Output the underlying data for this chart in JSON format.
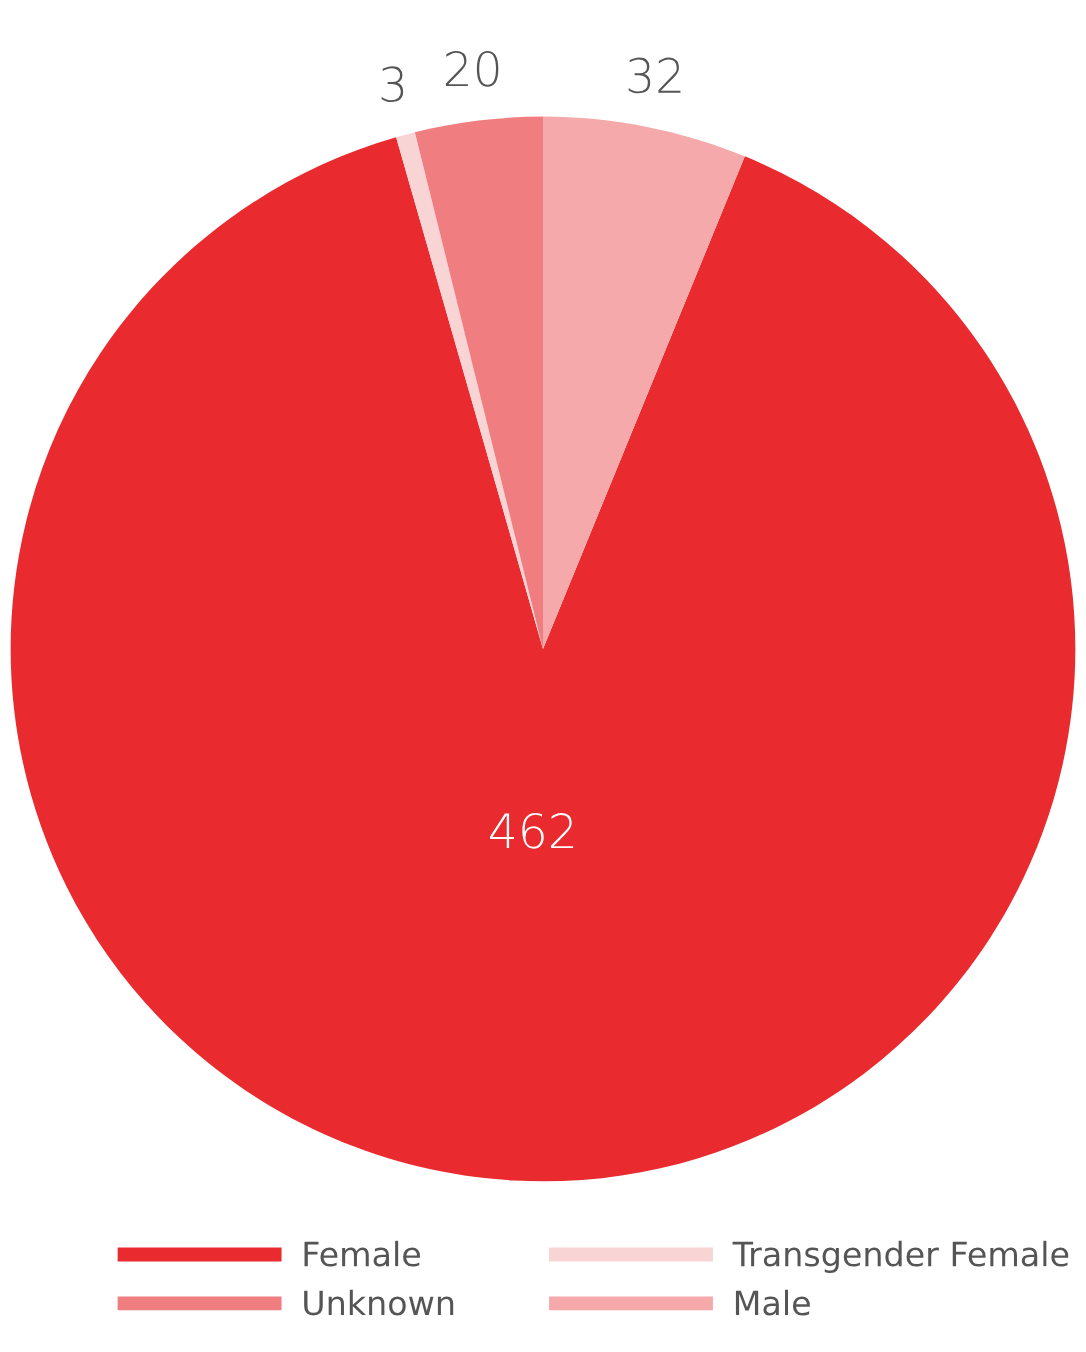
{
  "chart_data": {
    "type": "pie",
    "categories": [
      "Female",
      "Transgender Female",
      "Unknown",
      "Male"
    ],
    "values": [
      462,
      3,
      20,
      32
    ],
    "colors": [
      "#e92a2e",
      "#f9d4d5",
      "#f07d80",
      "#f5a9aa"
    ],
    "data_labels": true,
    "legend": "bottom"
  }
}
